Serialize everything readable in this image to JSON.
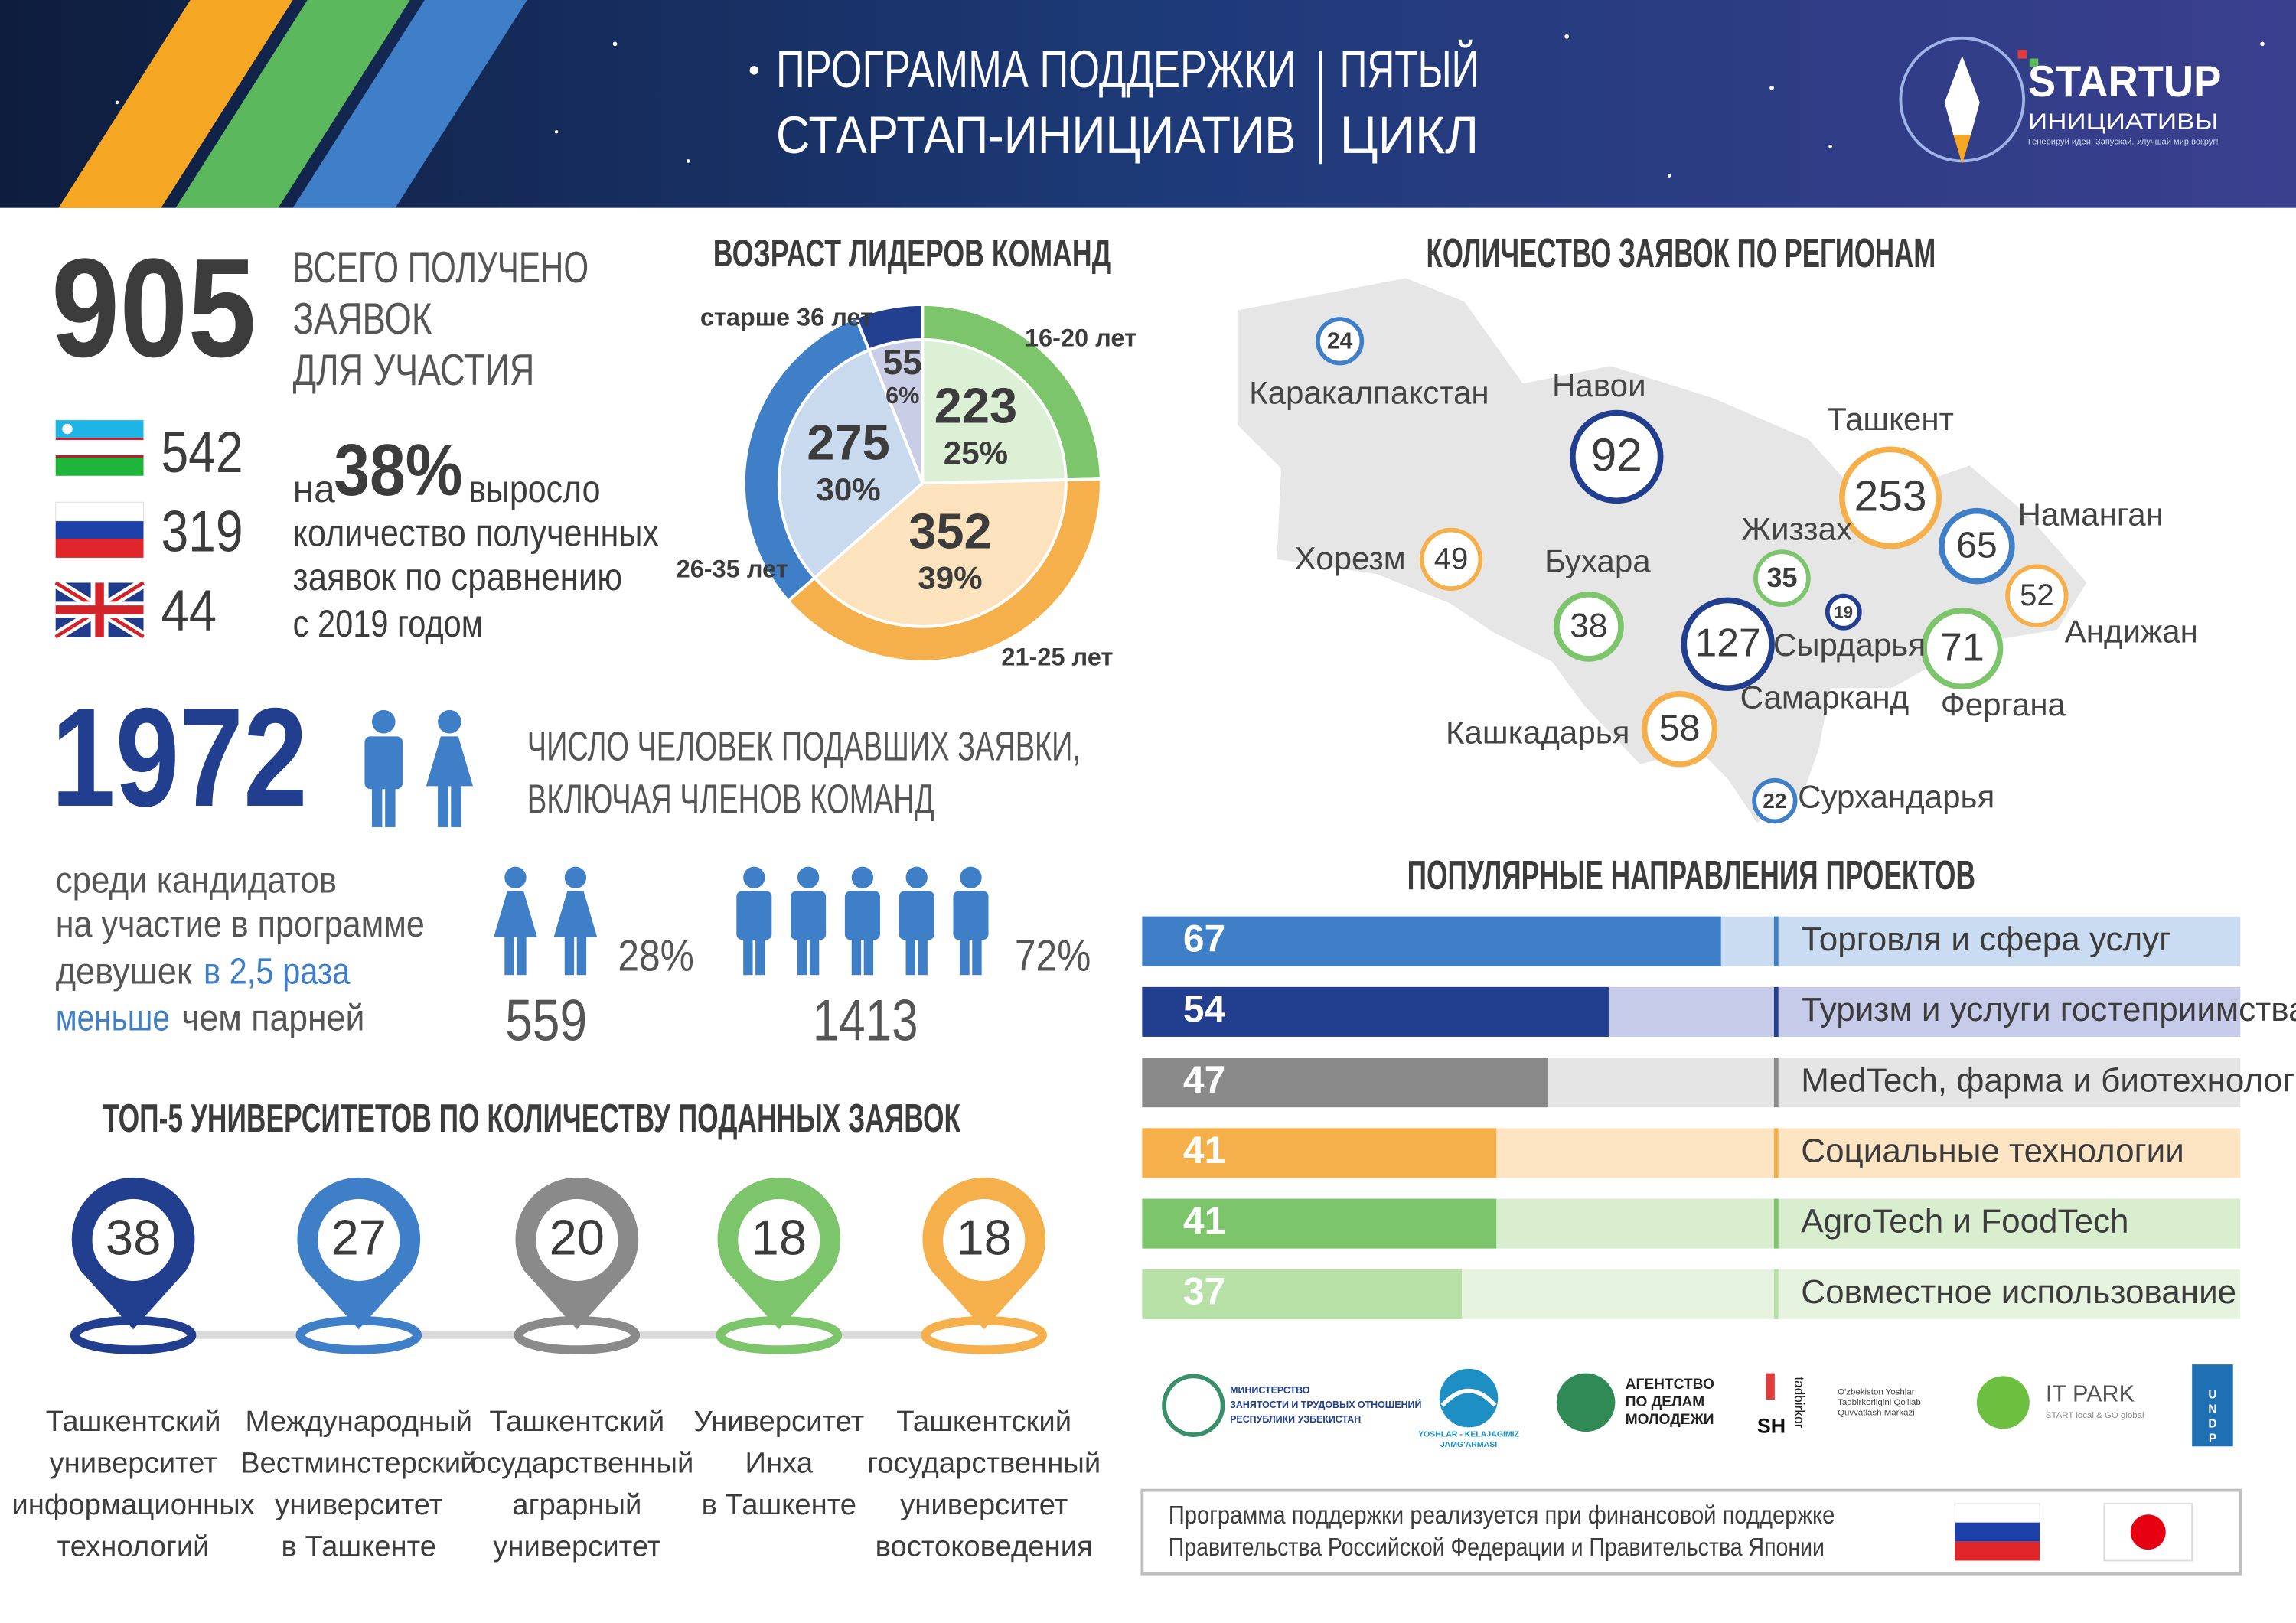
{
  "header": {
    "title": [
      "ПРОГРАММА ПОДДЕРЖКИ",
      "СТАРТАП-ИНИЦИАТИВ"
    ],
    "cycle": [
      "ПЯТЫЙ",
      "ЦИКЛ"
    ],
    "logo": {
      "name": "STARTUP",
      "subtitle": "ИНИЦИАТИВЫ",
      "tagline": "Генерируй идеи. Запускай. Улучшай мир вокруг!"
    }
  },
  "total": {
    "value": 905,
    "label": [
      "ВСЕГО ПОЛУЧЕНО",
      "ЗАЯВОК",
      "ДЛЯ УЧАСТИЯ"
    ],
    "by_country": [
      542,
      319,
      44
    ]
  },
  "growth": {
    "prefix": "на",
    "value": "38%",
    "suffix": "выросло",
    "lines": [
      "количество полученных",
      "заявок по сравнению",
      "с 2019 годом"
    ]
  },
  "people": {
    "value": 1972,
    "label": [
      "ЧИСЛО ЧЕЛОВЕК ПОДАВШИХ ЗАЯВКИ,",
      "ВКЛЮЧАЯ ЧЛЕНОВ КОМАНД"
    ],
    "note": [
      [
        "среди кандидатов"
      ],
      [
        "на участие в программе"
      ],
      [
        "девушек",
        "в 2,5 раза"
      ],
      [
        "меньше",
        "чем парней"
      ]
    ],
    "women": {
      "share": "28%",
      "count": 559
    },
    "men": {
      "share": "72%",
      "count": 1413
    }
  },
  "chart_data": [
    {
      "type": "pie",
      "title": "ВОЗРАСТ ЛИДЕРОВ КОМАНД",
      "categories": [
        "16-20 лет",
        "21-25 лет",
        "26-35 лет",
        "старше 36 лет"
      ],
      "values": [
        223,
        352,
        275,
        55
      ],
      "value_shares": [
        "25%",
        "39%",
        "30%",
        "6%"
      ],
      "colors": [
        "#7cc56a",
        "#f5b04b",
        "#3f7fc8",
        "#233f8f"
      ],
      "inner_colors": [
        "#dcf0d5",
        "#fde3bd",
        "#c9daef",
        "#c9cde6"
      ]
    },
    {
      "type": "bar",
      "orientation": "horizontal",
      "title": "ПОПУЛЯРНЫЕ НАПРАВЛЕНИЯ ПРОЕКТОВ",
      "categories": [
        "Торговля и сфера услуг",
        "Туризм и услуги гостеприимства",
        "MedTech, фарма и биотехнологии",
        "Социальные технологии",
        "AgroTech и FoodTech",
        "Совместное использование"
      ],
      "values": [
        67,
        54,
        47,
        41,
        41,
        37
      ],
      "colors": [
        "#3f7fc8",
        "#213e8f",
        "#8a8a8a",
        "#f5b04b",
        "#7cc56a",
        "#b7e0a6"
      ],
      "background_colors": [
        "#c9dcf1",
        "#c5cbe8",
        "#e5e5e5",
        "#fde5c4",
        "#d8eecf",
        "#e6f4df"
      ]
    }
  ],
  "regions": {
    "title": "КОЛИЧЕСТВО ЗАЯВОК ПО РЕГИОНАМ",
    "items": [
      {
        "name": "Каракалпакстан",
        "value": 24,
        "color": "#3f7fc8"
      },
      {
        "name": "Навои",
        "value": 92,
        "color": "#213e8f"
      },
      {
        "name": "Ташкент",
        "value": 253,
        "color": "#f5b04b"
      },
      {
        "name": "Наманган",
        "value": 65,
        "color": "#3f7fc8"
      },
      {
        "name": "Андижан",
        "value": 52,
        "color": "#f5b04b"
      },
      {
        "name": "Фергана",
        "value": 71,
        "color": "#7cc56a"
      },
      {
        "name": "Жиззах",
        "value": 35,
        "color": "#7cc56a"
      },
      {
        "name": "Сырдарья",
        "value": 19,
        "color": "#213e8f"
      },
      {
        "name": "Самарканд",
        "value": 127,
        "color": "#213e8f"
      },
      {
        "name": "Бухара",
        "value": 38,
        "color": "#7cc56a"
      },
      {
        "name": "Хорезм",
        "value": 49,
        "color": "#f5b04b"
      },
      {
        "name": "Кашкадарья",
        "value": 58,
        "color": "#f5b04b"
      },
      {
        "name": "Сурхандарья",
        "value": 22,
        "color": "#3f7fc8"
      }
    ]
  },
  "universities": {
    "title": "ТОП-5 УНИВЕРСИТЕТОВ ПО КОЛИЧЕСТВУ ПОДАННЫХ ЗАЯВОК",
    "items": [
      {
        "value": 38,
        "color": "#213e8f",
        "name": [
          "Ташкентский",
          "университет",
          "информационных",
          "технологий"
        ]
      },
      {
        "value": 27,
        "color": "#3f7fc8",
        "name": [
          "Международный",
          "Вестминстерский",
          "университет",
          "в Ташкенте"
        ]
      },
      {
        "value": 20,
        "color": "#8a8a8a",
        "name": [
          "Ташкентский",
          "государственный",
          "аграрный",
          "университет"
        ]
      },
      {
        "value": 18,
        "color": "#7cc56a",
        "name": [
          "Университет",
          "Инха",
          "в Ташкенте"
        ]
      },
      {
        "value": 18,
        "color": "#f5b04b",
        "name": [
          "Ташкентский",
          "государственный",
          "университет",
          "востоковедения"
        ]
      }
    ]
  },
  "partners": {
    "ministry": [
      "МИНИСТЕРСТВО",
      "ЗАНЯТОСТИ И ТРУДОВЫХ ОТНОШЕНИЙ",
      "РЕСПУБЛИКИ УЗБЕКИСТАН"
    ],
    "fund": [
      "YOSHLAR - KELAJAGIMIZ",
      "JAMG'ARMASI"
    ],
    "agency": [
      "АГЕНТСТВО",
      "ПО ДЕЛАМ",
      "МОЛОДЕЖИ"
    ],
    "tadbirkor": {
      "mark": "SH",
      "name": "tadbirkor",
      "text": [
        "O'zbekiston Yoshlar",
        "Tadbirkorligini Qo'llab",
        "Quvvatlash Markazi"
      ]
    },
    "itpark": {
      "name": "IT PARK",
      "tagline": "START local & GO global"
    },
    "undp": [
      "U",
      "N",
      "D",
      "P"
    ]
  },
  "footer": {
    "text": [
      "Программа поддержки реализуется при финансовой поддержке",
      "Правительства Российской Федерации и Правительства Японии"
    ]
  }
}
